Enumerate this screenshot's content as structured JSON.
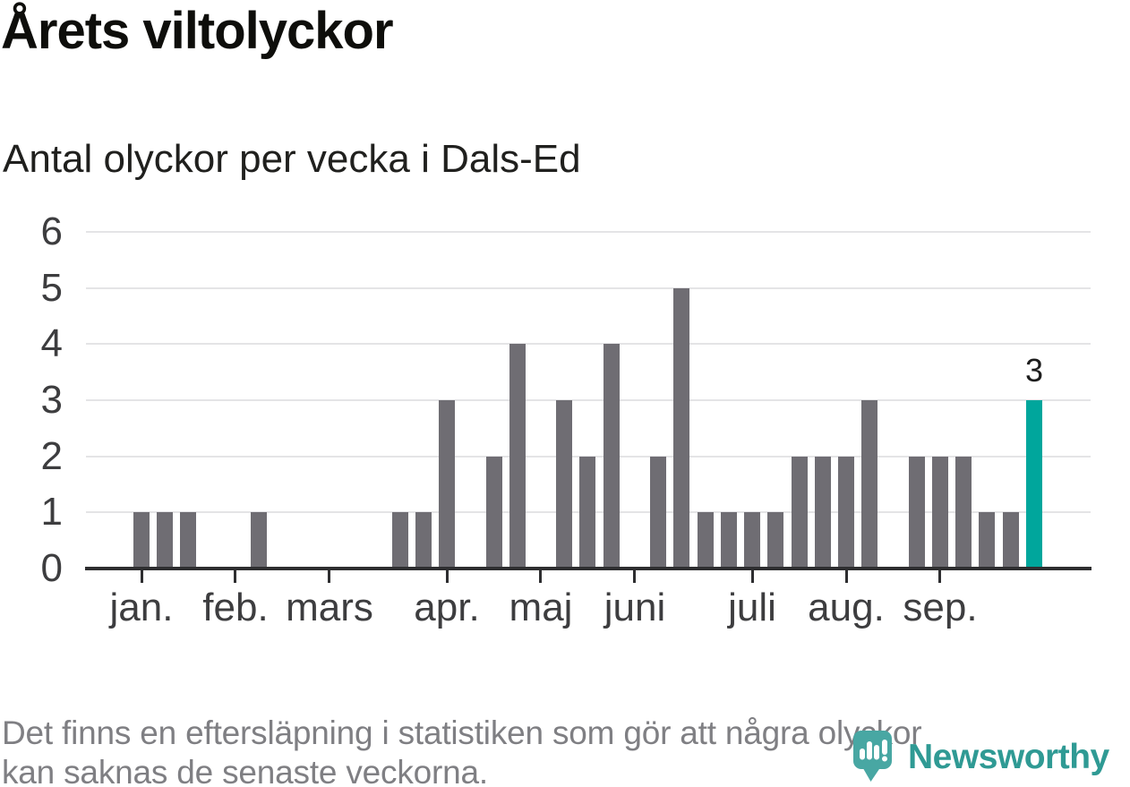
{
  "header": {
    "title": "Årets viltolyckor",
    "subtitle": "Antal olyckor per vecka i Dals-Ed"
  },
  "chart_data": {
    "type": "bar",
    "title": "Årets viltolyckor",
    "subtitle": "Antal olyckor per vecka i Dals-Ed",
    "ylim": [
      0,
      6
    ],
    "yticks": [
      0,
      1,
      2,
      3,
      4,
      5,
      6
    ],
    "grid": "horizontal",
    "x_description": "one bar per week, January through late September",
    "values": [
      1,
      1,
      1,
      0,
      0,
      1,
      0,
      0,
      0,
      0,
      0,
      1,
      1,
      3,
      0,
      2,
      4,
      0,
      3,
      2,
      4,
      0,
      2,
      5,
      1,
      1,
      1,
      1,
      2,
      2,
      2,
      3,
      0,
      2,
      2,
      2,
      1,
      1,
      3
    ],
    "month_ticks": [
      {
        "label": "jan.",
        "week_index": 0
      },
      {
        "label": "feb.",
        "week_index": 4
      },
      {
        "label": "mars",
        "week_index": 8
      },
      {
        "label": "apr.",
        "week_index": 13
      },
      {
        "label": "maj",
        "week_index": 17
      },
      {
        "label": "juni",
        "week_index": 21
      },
      {
        "label": "juli",
        "week_index": 26
      },
      {
        "label": "aug.",
        "week_index": 30
      },
      {
        "label": "sep.",
        "week_index": 34
      }
    ],
    "highlight": {
      "index": 38,
      "value_label": "3"
    },
    "colors": {
      "bar": "#6f6d73",
      "highlight": "#00a69c",
      "grid": "#e4e4e6",
      "axis": "#2e2e30",
      "axis_label": "#3d3d3f"
    }
  },
  "footer": {
    "note": "Det finns en eftersläpning i statistiken som gör att några olyckor kan saknas de senaste veckorna."
  },
  "logo": {
    "wordmark": "Newsworthy",
    "wordmark_color": "#2f9a94",
    "icon_color": "#48a7a3"
  }
}
